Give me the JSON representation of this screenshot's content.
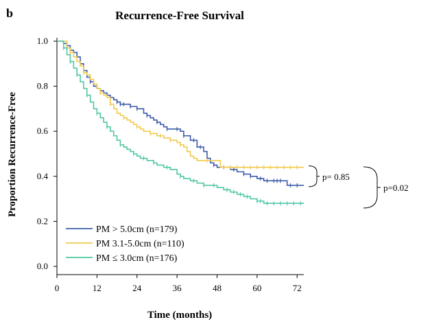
{
  "panel_letter": "b",
  "chart_data": {
    "type": "line",
    "subtype": "kaplan-meier",
    "title": "Recurrence-Free Survival",
    "xlabel": "Time (months)",
    "ylabel": "Proportion Recurrence-Free",
    "xlim": [
      0,
      74
    ],
    "ylim": [
      0,
      1.05
    ],
    "x_ticks": [
      0,
      12,
      24,
      36,
      48,
      60,
      72
    ],
    "y_ticks": [
      0.0,
      0.2,
      0.4,
      0.6,
      0.8,
      1.0
    ],
    "x_tick_labels": [
      "0",
      "12",
      "24",
      "36",
      "48",
      "60",
      "72"
    ],
    "y_tick_labels": [
      "0.0",
      "0.2",
      "0.4",
      "0.6",
      "0.8",
      "1.0"
    ],
    "grid": false,
    "legend_position": "bottom-left",
    "series": [
      {
        "name": "PM > 5.0cm (n=179)",
        "color": "#3a5ba8",
        "steps": [
          [
            0,
            1.0
          ],
          [
            1.5,
            1.0
          ],
          [
            2,
            0.99
          ],
          [
            3,
            0.98
          ],
          [
            4,
            0.96
          ],
          [
            5,
            0.95
          ],
          [
            6,
            0.93
          ],
          [
            7,
            0.9
          ],
          [
            8,
            0.87
          ],
          [
            9,
            0.84
          ],
          [
            10,
            0.82
          ],
          [
            11,
            0.8
          ],
          [
            12,
            0.79
          ],
          [
            13,
            0.78
          ],
          [
            14,
            0.77
          ],
          [
            15,
            0.76
          ],
          [
            16,
            0.75
          ],
          [
            17,
            0.74
          ],
          [
            18,
            0.73
          ],
          [
            19,
            0.72
          ],
          [
            20,
            0.72
          ],
          [
            22,
            0.71
          ],
          [
            24,
            0.7
          ],
          [
            26,
            0.68
          ],
          [
            27,
            0.67
          ],
          [
            28,
            0.66
          ],
          [
            29,
            0.65
          ],
          [
            30,
            0.64
          ],
          [
            31,
            0.63
          ],
          [
            32,
            0.62
          ],
          [
            33,
            0.61
          ],
          [
            36,
            0.61
          ],
          [
            37,
            0.6
          ],
          [
            38,
            0.58
          ],
          [
            40,
            0.56
          ],
          [
            42,
            0.53
          ],
          [
            44,
            0.51
          ],
          [
            45,
            0.48
          ],
          [
            46,
            0.46
          ],
          [
            47,
            0.45
          ],
          [
            48,
            0.44
          ],
          [
            52,
            0.43
          ],
          [
            54,
            0.42
          ],
          [
            56,
            0.41
          ],
          [
            58,
            0.4
          ],
          [
            60,
            0.39
          ],
          [
            62,
            0.38
          ],
          [
            68,
            0.38
          ],
          [
            69,
            0.36
          ],
          [
            74,
            0.36
          ]
        ],
        "censor_x": [
          3,
          5,
          8,
          10,
          14,
          18,
          19,
          20,
          22,
          24,
          27,
          30,
          33,
          36,
          38,
          41,
          43,
          47,
          50,
          53,
          56,
          58,
          61,
          63,
          65,
          66,
          67,
          70,
          72
        ]
      },
      {
        "name": "PM 3.1-5.0cm (n=110)",
        "color": "#f2c94c",
        "steps": [
          [
            0,
            1.0
          ],
          [
            2,
            1.0
          ],
          [
            3,
            0.97
          ],
          [
            4,
            0.95
          ],
          [
            5,
            0.93
          ],
          [
            6,
            0.91
          ],
          [
            7,
            0.89
          ],
          [
            8,
            0.86
          ],
          [
            9,
            0.85
          ],
          [
            10,
            0.83
          ],
          [
            11,
            0.81
          ],
          [
            12,
            0.79
          ],
          [
            13,
            0.77
          ],
          [
            14,
            0.76
          ],
          [
            15,
            0.75
          ],
          [
            16,
            0.72
          ],
          [
            17,
            0.7
          ],
          [
            18,
            0.68
          ],
          [
            19,
            0.67
          ],
          [
            20,
            0.66
          ],
          [
            21,
            0.65
          ],
          [
            22,
            0.64
          ],
          [
            23,
            0.63
          ],
          [
            24,
            0.62
          ],
          [
            25,
            0.61
          ],
          [
            26,
            0.6
          ],
          [
            28,
            0.59
          ],
          [
            30,
            0.58
          ],
          [
            32,
            0.57
          ],
          [
            34,
            0.56
          ],
          [
            36,
            0.55
          ],
          [
            37,
            0.54
          ],
          [
            38,
            0.53
          ],
          [
            39,
            0.51
          ],
          [
            40,
            0.49
          ],
          [
            41,
            0.48
          ],
          [
            42,
            0.47
          ],
          [
            48,
            0.47
          ],
          [
            49,
            0.44
          ],
          [
            74,
            0.44
          ]
        ],
        "censor_x": [
          4,
          8,
          13,
          16,
          20,
          24,
          28,
          31,
          34,
          37,
          45,
          50,
          52,
          54,
          56,
          58,
          60,
          62,
          64,
          66,
          68,
          70,
          72
        ]
      },
      {
        "name": "PM ≤ 3.0cm (n=176)",
        "color": "#4fc7a6",
        "steps": [
          [
            0,
            1.0
          ],
          [
            1,
            1.0
          ],
          [
            2,
            0.97
          ],
          [
            3,
            0.94
          ],
          [
            4,
            0.91
          ],
          [
            5,
            0.88
          ],
          [
            6,
            0.85
          ],
          [
            7,
            0.82
          ],
          [
            8,
            0.79
          ],
          [
            9,
            0.76
          ],
          [
            10,
            0.73
          ],
          [
            11,
            0.7
          ],
          [
            12,
            0.68
          ],
          [
            13,
            0.66
          ],
          [
            14,
            0.64
          ],
          [
            15,
            0.62
          ],
          [
            16,
            0.6
          ],
          [
            17,
            0.58
          ],
          [
            18,
            0.56
          ],
          [
            19,
            0.54
          ],
          [
            20,
            0.53
          ],
          [
            21,
            0.52
          ],
          [
            22,
            0.51
          ],
          [
            23,
            0.5
          ],
          [
            24,
            0.49
          ],
          [
            25,
            0.48
          ],
          [
            27,
            0.47
          ],
          [
            29,
            0.46
          ],
          [
            30,
            0.45
          ],
          [
            32,
            0.44
          ],
          [
            34,
            0.43
          ],
          [
            36,
            0.41
          ],
          [
            37,
            0.4
          ],
          [
            38,
            0.39
          ],
          [
            40,
            0.38
          ],
          [
            42,
            0.37
          ],
          [
            44,
            0.36
          ],
          [
            46,
            0.36
          ],
          [
            48,
            0.35
          ],
          [
            50,
            0.34
          ],
          [
            52,
            0.33
          ],
          [
            54,
            0.32
          ],
          [
            56,
            0.31
          ],
          [
            58,
            0.3
          ],
          [
            60,
            0.29
          ],
          [
            62,
            0.28
          ],
          [
            74,
            0.28
          ]
        ],
        "censor_x": [
          2,
          4,
          6,
          9,
          12,
          15,
          19,
          23,
          26,
          29,
          33,
          37,
          41,
          44,
          47,
          51,
          53,
          55,
          57,
          60,
          61,
          63,
          65,
          67,
          69,
          71,
          73
        ]
      }
    ],
    "annotations": [
      {
        "text": "p= 0.85",
        "between": [
          "PM > 5.0cm (n=179)",
          "PM 3.1-5.0cm (n=110)"
        ]
      },
      {
        "text": "p=0.02",
        "between": [
          "PM > 5.0cm (n=179)",
          "PM ≤ 3.0cm (n=176)"
        ]
      }
    ]
  }
}
